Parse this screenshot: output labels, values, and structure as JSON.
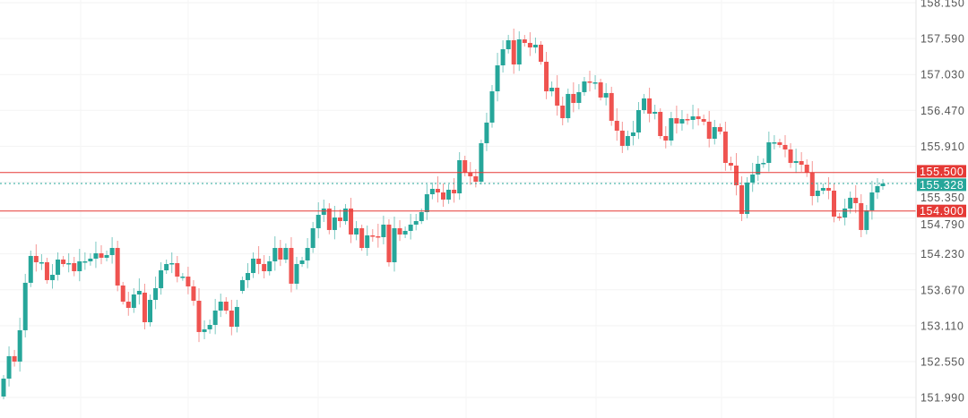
{
  "chart_data": {
    "type": "candlestick",
    "title": "",
    "xlabel": "",
    "ylabel": "",
    "ylim": [
      151.99,
      158.15
    ],
    "y_ticks": [
      "158.150",
      "157.590",
      "157.030",
      "156.470",
      "155.910",
      "155.350",
      "154.790",
      "154.230",
      "153.670",
      "153.110",
      "152.550",
      "151.990"
    ],
    "grid": true,
    "colors": {
      "up": "#26a69a",
      "down": "#ef5350",
      "level_line": "#d32f2f",
      "current_price": "#26a69a"
    },
    "open_overrides": {
      "0": 152.005,
      "26": 153.625,
      "44": 153.653
    },
    "close": [
      152.284,
      152.634,
      152.55,
      153.039,
      153.779,
      154.198,
      154.1,
      154.1,
      153.821,
      153.904,
      154.142,
      154.072,
      154.086,
      153.96,
      154.114,
      154.114,
      154.156,
      154.24,
      154.17,
      154.212,
      154.323,
      153.737,
      153.485,
      153.388,
      153.597,
      153.653,
      153.164,
      153.513,
      153.695,
      153.974,
      154.072,
      154.086,
      153.876,
      153.876,
      153.723,
      153.499,
      153.011,
      153.053,
      153.122,
      153.346,
      153.485,
      153.346,
      153.094,
      153.402,
      153.821,
      153.932,
      154.156,
      154.072,
      153.96,
      154.114,
      154.323,
      154.142,
      154.323,
      153.765,
      154.072,
      154.128,
      154.323,
      154.631,
      154.84,
      154.938,
      154.603,
      154.798,
      154.742,
      154.938,
      154.533,
      154.631,
      154.323,
      154.519,
      154.505,
      154.491,
      154.687,
      154.1,
      154.631,
      154.533,
      154.589,
      154.687,
      154.742,
      154.882,
      155.161,
      155.245,
      155.189,
      155.078,
      155.231,
      155.175,
      155.692,
      155.497,
      155.441,
      155.357,
      155.957,
      156.279,
      156.767,
      157.172,
      157.424,
      157.564,
      157.186,
      157.577,
      157.522,
      157.452,
      157.494,
      157.228,
      156.767,
      156.823,
      156.544,
      156.348,
      156.726,
      156.586,
      156.754,
      156.921,
      156.907,
      156.907,
      156.67,
      156.74,
      156.307,
      156.153,
      155.916,
      156.069,
      156.125,
      156.474,
      156.656,
      156.418,
      156.446,
      156.069,
      155.999,
      156.348,
      156.265,
      156.334,
      156.321,
      156.376,
      156.334,
      156.293,
      156.027,
      156.209,
      156.139,
      155.65,
      155.608,
      155.301,
      154.854,
      155.343,
      155.469,
      155.636,
      155.65,
      155.971,
      155.971,
      155.93,
      155.86,
      155.65,
      155.678,
      155.622,
      155.497,
      155.133,
      155.217,
      155.259,
      155.217,
      154.812,
      154.798,
      154.938,
      155.106,
      155.022,
      154.603,
      154.91,
      155.189,
      155.287,
      155.328
    ],
    "levels": [
      {
        "value": 155.5,
        "label": "155.500",
        "style": "solid",
        "color": "#e53935"
      },
      {
        "value": 154.9,
        "label": "154.900",
        "style": "solid",
        "color": "#e53935"
      }
    ],
    "current_price": {
      "value": 155.328,
      "label": "155.328",
      "style": "dotted",
      "color": "#26a69a"
    }
  }
}
